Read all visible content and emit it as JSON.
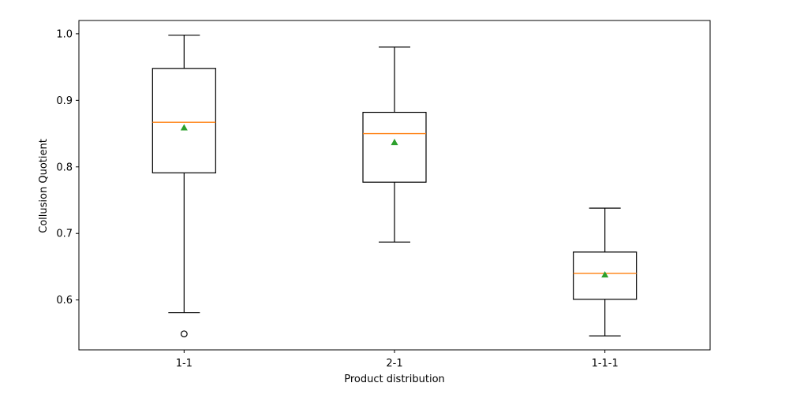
{
  "chart_data": {
    "type": "boxplot",
    "xlabel": "Product distribution",
    "ylabel": "Collusion Quotient",
    "ylim": [
      0.525,
      1.02
    ],
    "yticks": [
      "0.6",
      "0.7",
      "0.8",
      "0.9",
      "1.0"
    ],
    "grid": false,
    "categories": [
      "1-1",
      "2-1",
      "1-1-1"
    ],
    "boxes": [
      {
        "category": "1-1",
        "whisker_low": 0.581,
        "q1": 0.791,
        "median": 0.867,
        "q3": 0.948,
        "whisker_high": 0.998,
        "mean": 0.859,
        "outliers": [
          0.549
        ]
      },
      {
        "category": "2-1",
        "whisker_low": 0.687,
        "q1": 0.777,
        "median": 0.85,
        "q3": 0.882,
        "whisker_high": 0.98,
        "mean": 0.837,
        "outliers": []
      },
      {
        "category": "1-1-1",
        "whisker_low": 0.546,
        "q1": 0.601,
        "median": 0.64,
        "q3": 0.672,
        "whisker_high": 0.738,
        "mean": 0.638,
        "outliers": []
      }
    ],
    "colors": {
      "box": "#000000",
      "median": "#ff7f0e",
      "mean": "#2ca02c",
      "outlier": "#000000"
    }
  }
}
